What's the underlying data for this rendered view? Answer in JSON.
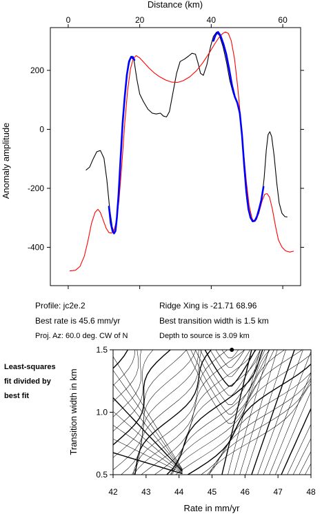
{
  "info": {
    "profile": "Profile: jc2e.2",
    "best_rate": "Best rate is 45.6 mm/yr",
    "proj_az": "Proj. Az: 60.0 deg. CW of N",
    "ridge_xing": "Ridge Xing is -21.71 68.96",
    "best_width": "Best transition width is 1.5 km",
    "depth": "Depth to source is   3.09 km"
  },
  "side_note": [
    "Least-squares",
    "fit divided by",
    "best fit"
  ],
  "chart_data": [
    {
      "type": "line",
      "xlabel": "Distance (km)",
      "ylabel": "Anomaly amplitude",
      "xlim": [
        -5,
        65
      ],
      "ylim": [
        -530,
        345
      ],
      "xticks": [
        0,
        20,
        40,
        60
      ],
      "yticks": [
        200,
        0,
        -200,
        -400
      ],
      "xtick_labels": [
        "0",
        "20",
        "40",
        "60"
      ],
      "ytick_labels": [
        "200",
        "0",
        "-200",
        "-400"
      ],
      "x_axis_position": "top",
      "series": [
        {
          "color": "#000000",
          "points": [
            [
              5,
              -138
            ],
            [
              6,
              -128
            ],
            [
              7,
              -100
            ],
            [
              8,
              -76
            ],
            [
              9,
              -72
            ],
            [
              10,
              -98
            ],
            [
              10.8,
              -170
            ],
            [
              11.6,
              -270
            ],
            [
              12.3,
              -330
            ],
            [
              12.8,
              -350
            ],
            [
              13.3,
              -345
            ],
            [
              14,
              -250
            ],
            [
              14.8,
              -80
            ],
            [
              15.7,
              90
            ],
            [
              16.6,
              200
            ],
            [
              17.5,
              245
            ],
            [
              18.4,
              235
            ],
            [
              19.2,
              170
            ],
            [
              20,
              120
            ],
            [
              21,
              95
            ],
            [
              22.3,
              68
            ],
            [
              23.5,
              55
            ],
            [
              24.6,
              52
            ],
            [
              25.8,
              55
            ],
            [
              26.6,
              45
            ],
            [
              27.5,
              42
            ],
            [
              28.3,
              60
            ],
            [
              29.3,
              125
            ],
            [
              30.3,
              190
            ],
            [
              31.3,
              230
            ],
            [
              32.5,
              238
            ],
            [
              33.6,
              248
            ],
            [
              34.6,
              258
            ],
            [
              35.6,
              255
            ],
            [
              36.3,
              225
            ],
            [
              37,
              190
            ],
            [
              37.8,
              183
            ],
            [
              38.8,
              220
            ],
            [
              39.8,
              280
            ],
            [
              40.6,
              315
            ],
            [
              41.5,
              330
            ],
            [
              42.3,
              318
            ],
            [
              43.3,
              280
            ],
            [
              44.3,
              225
            ],
            [
              45.2,
              165
            ],
            [
              46.2,
              120
            ],
            [
              47.2,
              95
            ],
            [
              48,
              50
            ],
            [
              48.7,
              -40
            ],
            [
              49.3,
              -150
            ],
            [
              50,
              -245
            ],
            [
              50.8,
              -295
            ],
            [
              51.6,
              -312
            ],
            [
              52.4,
              -308
            ],
            [
              53.3,
              -285
            ],
            [
              54,
              -250
            ],
            [
              54.8,
              -165
            ],
            [
              55.4,
              -70
            ],
            [
              55.9,
              -18
            ],
            [
              56.4,
              -8
            ],
            [
              56.9,
              -25
            ],
            [
              57.6,
              -90
            ],
            [
              58.3,
              -180
            ],
            [
              59,
              -250
            ],
            [
              59.8,
              -285
            ],
            [
              60.6,
              -296
            ],
            [
              61.2,
              -297
            ]
          ]
        },
        {
          "color": "#ff0000",
          "points": [
            [
              0.5,
              -480
            ],
            [
              2,
              -478
            ],
            [
              3.3,
              -465
            ],
            [
              4.5,
              -430
            ],
            [
              5.5,
              -380
            ],
            [
              6.5,
              -320
            ],
            [
              7.5,
              -282
            ],
            [
              8.3,
              -271
            ],
            [
              9,
              -282
            ],
            [
              9.8,
              -308
            ],
            [
              10.6,
              -335
            ],
            [
              11.4,
              -350
            ],
            [
              12.1,
              -352
            ],
            [
              12.8,
              -343
            ],
            [
              13.5,
              -310
            ],
            [
              14.2,
              -240
            ],
            [
              15,
              -120
            ],
            [
              15.8,
              20
            ],
            [
              16.6,
              130
            ],
            [
              17.4,
              205
            ],
            [
              18.2,
              240
            ],
            [
              19,
              250
            ],
            [
              20,
              242
            ],
            [
              21.3,
              225
            ],
            [
              22.6,
              208
            ],
            [
              24,
              192
            ],
            [
              25.6,
              178
            ],
            [
              27.3,
              167
            ],
            [
              29,
              160
            ],
            [
              30.6,
              159
            ],
            [
              32.2,
              165
            ],
            [
              34,
              178
            ],
            [
              35.8,
              198
            ],
            [
              37.6,
              225
            ],
            [
              39.4,
              258
            ],
            [
              41,
              290
            ],
            [
              42.2,
              312
            ],
            [
              43.2,
              325
            ],
            [
              44,
              330
            ],
            [
              44.8,
              325
            ],
            [
              45.6,
              300
            ],
            [
              46.5,
              240
            ],
            [
              47.4,
              145
            ],
            [
              48.2,
              40
            ],
            [
              49,
              -70
            ],
            [
              49.8,
              -175
            ],
            [
              50.6,
              -258
            ],
            [
              51.4,
              -302
            ],
            [
              52,
              -313
            ],
            [
              52.7,
              -305
            ],
            [
              53.5,
              -275
            ],
            [
              54.3,
              -240
            ],
            [
              55,
              -220
            ],
            [
              55.6,
              -218
            ],
            [
              56.3,
              -230
            ],
            [
              57.1,
              -270
            ],
            [
              58,
              -330
            ],
            [
              58.8,
              -375
            ],
            [
              59.8,
              -400
            ],
            [
              60.8,
              -412
            ],
            [
              62,
              -416
            ],
            [
              63,
              -413
            ]
          ]
        },
        {
          "color": "#0000ff",
          "points": [
            [
              11.4,
              -262
            ],
            [
              11.9,
              -318
            ],
            [
              12.4,
              -345
            ],
            [
              12.8,
              -353
            ],
            [
              13.2,
              -345
            ],
            [
              13.6,
              -300
            ],
            [
              14.1,
              -220
            ],
            [
              14.6,
              -110
            ],
            [
              15.2,
              20
            ],
            [
              15.8,
              110
            ],
            [
              16.4,
              185
            ],
            [
              17,
              230
            ],
            [
              17.6,
              246
            ],
            [
              18.1,
              245
            ],
            [
              18.5,
              235
            ]
          ],
          "points2": [
            [
              40.6,
              300
            ],
            [
              41.2,
              320
            ],
            [
              41.9,
              330
            ],
            [
              42.6,
              318
            ],
            [
              43.4,
              290
            ],
            [
              44.2,
              255
            ],
            [
              45,
              205
            ],
            [
              45.8,
              150
            ],
            [
              46.6,
              110
            ],
            [
              47.3,
              90
            ],
            [
              48,
              55
            ],
            [
              48.6,
              -20
            ],
            [
              49.2,
              -120
            ],
            [
              49.8,
              -210
            ],
            [
              50.4,
              -270
            ],
            [
              51,
              -300
            ],
            [
              51.6,
              -312
            ],
            [
              52.2,
              -310
            ],
            [
              52.8,
              -295
            ],
            [
              53.4,
              -270
            ],
            [
              54,
              -240
            ],
            [
              54.6,
              -195
            ]
          ]
        }
      ]
    },
    {
      "type": "contour",
      "xlabel": "Rate in mm/yr",
      "ylabel": "Transition width in km",
      "xlim": [
        42,
        48
      ],
      "ylim": [
        0.5,
        1.5
      ],
      "xticks": [
        42,
        43,
        44,
        45,
        46,
        47,
        48
      ],
      "yticks": [
        0.5,
        1.0,
        1.5
      ],
      "xtick_labels": [
        "42",
        "43",
        "44",
        "45",
        "46",
        "47",
        "48"
      ],
      "ytick_labels": [
        "0.5",
        "1.0",
        "1.5"
      ],
      "best_fit_marker": [
        45.6,
        1.5
      ]
    }
  ]
}
